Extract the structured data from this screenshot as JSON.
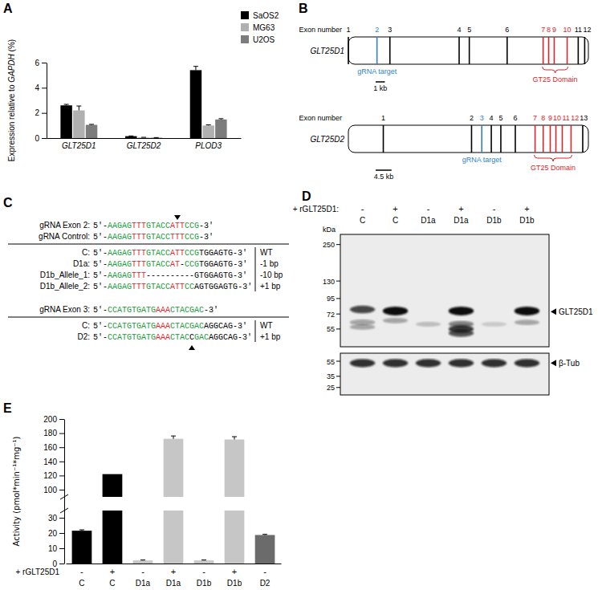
{
  "chart_data": [
    {
      "type": "bar",
      "annotations": [
        "A"
      ],
      "y_label": "Expression relative to GAPDH (%)",
      "categories": [
        "GLT25D1",
        "GLT25D2",
        "PLOD3"
      ],
      "series": [
        {
          "name": "SaOS2",
          "color": "#000000",
          "values": [
            2.6,
            0.15,
            5.4
          ],
          "errors": [
            0.08,
            0.02,
            0.3
          ]
        },
        {
          "name": "MG63",
          "color": "#b0b0b0",
          "values": [
            2.2,
            0.05,
            1.0
          ],
          "errors": [
            0.35,
            0.01,
            0.05
          ]
        },
        {
          "name": "U2OS",
          "color": "#7c7c7c",
          "values": [
            1.05,
            0.03,
            1.48
          ],
          "errors": [
            0.04,
            0.01,
            0.06
          ]
        }
      ],
      "ylim": [
        0,
        6
      ],
      "yticks": [
        0,
        2,
        4,
        6
      ],
      "legend": "upper right"
    },
    {
      "type": "bar",
      "annotations": [
        "E"
      ],
      "y_label": "Activity (pmol*min⁻¹*mg⁻¹)",
      "categories": [
        "C",
        "C",
        "D1a",
        "D1a",
        "D1b",
        "D1b",
        "D2"
      ],
      "treatment": {
        "label": "+ rGLT25D1",
        "values": [
          "-",
          "+",
          "-",
          "+",
          "-",
          "+",
          "-"
        ]
      },
      "values": [
        21.5,
        122,
        2,
        172,
        2,
        171,
        18.7
      ],
      "errors": [
        0.6,
        null,
        0.3,
        4,
        0.3,
        4,
        0.4
      ],
      "colors": [
        "#000000",
        "#000000",
        "#c6c6c6",
        "#c6c6c6",
        "#c6c6c6",
        "#c6c6c6",
        "#6b6b6b"
      ],
      "ylim": [
        0,
        200
      ],
      "y_break": [
        30,
        100
      ],
      "yticks": [
        0,
        10,
        20,
        30,
        100,
        120,
        140,
        160,
        180,
        200
      ]
    }
  ],
  "gene_diagram": {
    "panel": "B",
    "genes": [
      {
        "name": "GLT25D1",
        "exon_label": "Exon number",
        "length_kb": 26,
        "exons": [
          {
            "number": 1,
            "kb": 0
          },
          {
            "number": 2,
            "kb": 3.1
          },
          {
            "number": 3,
            "kb": 4.5
          },
          {
            "number": 4,
            "kb": 12.0
          },
          {
            "number": 5,
            "kb": 13.1
          },
          {
            "number": 6,
            "kb": 17.2
          },
          {
            "number": 7,
            "kb": 21.1
          },
          {
            "number": 8,
            "kb": 21.7
          },
          {
            "number": 9,
            "kb": 22.3
          },
          {
            "number": 10,
            "kb": 23.7
          },
          {
            "number": 11,
            "kb": 24.9
          },
          {
            "number": 12,
            "kb": 25.6
          }
        ],
        "target": {
          "label": "gRNA target",
          "exon": 2,
          "color": "#2f7fd0"
        },
        "domain": {
          "label": "GT25 Domain",
          "exons": [
            7,
            10
          ],
          "color": "#d7262b"
        },
        "scale_bar": {
          "kb": 1,
          "label": "1 kb"
        }
      },
      {
        "name": "GLT25D2",
        "exon_label": "Exon number",
        "length_kb": 68,
        "exons": [
          {
            "number": 1,
            "kb": 9.9
          },
          {
            "number": 2,
            "kb": 34.9
          },
          {
            "number": 3,
            "kb": 37.8
          },
          {
            "number": 4,
            "kb": 40.5
          },
          {
            "number": 5,
            "kb": 43.2
          },
          {
            "number": 6,
            "kb": 47.3
          },
          {
            "number": 7,
            "kb": 52.9
          },
          {
            "number": 8,
            "kb": 55.2
          },
          {
            "number": 9,
            "kb": 57.2
          },
          {
            "number": 10,
            "kb": 58.8
          },
          {
            "number": 11,
            "kb": 60.6
          },
          {
            "number": 12,
            "kb": 63.1
          },
          {
            "number": 13,
            "kb": 66.4
          }
        ],
        "target": {
          "label": "gRNA target",
          "exon": 3,
          "color": "#2f7fd0"
        },
        "domain": {
          "label": "GT25 Domain",
          "exons": [
            7,
            12
          ],
          "color": "#d7262b"
        },
        "scale_bar": {
          "kb": 4.5,
          "label": "4.5 kb"
        }
      }
    ]
  },
  "sequences": {
    "panel": "C",
    "groups": [
      {
        "guides": [
          {
            "label": "gRNA Exon 2:",
            "segments": [
              [
                "5'-",
                "#000000"
              ],
              [
                "AAGAG",
                "#1c9a3c"
              ],
              [
                "TTT",
                "#e0262b"
              ],
              [
                "GTACC",
                "#1c9a3c"
              ],
              [
                "ATT",
                "#e0262b"
              ],
              [
                "CCG",
                "#1c9a3c"
              ],
              [
                "-3'",
                "#000000"
              ]
            ]
          },
          {
            "label": "gRNA Control:",
            "segments": [
              [
                "5'-",
                "#000000"
              ],
              [
                "AAGAG",
                "#1c9a3c"
              ],
              [
                "TTT",
                "#e0262b"
              ],
              [
                "GTACC",
                "#1c9a3c"
              ],
              [
                "TTT",
                "#e0262b"
              ],
              [
                "CCG",
                "#1c9a3c"
              ],
              [
                "-3'",
                "#000000"
              ]
            ]
          }
        ],
        "results": [
          {
            "label": "C:",
            "change": "WT",
            "segments": [
              [
                "5'-",
                "#000000"
              ],
              [
                "AAGAG",
                "#1c9a3c"
              ],
              [
                "TTT",
                "#e0262b"
              ],
              [
                "GTACC",
                "#1c9a3c"
              ],
              [
                "ATT",
                "#e0262b"
              ],
              [
                "CCG",
                "#1c9a3c"
              ],
              [
                "TGGAGTG",
                "#000000"
              ],
              [
                "-3'",
                "#000000"
              ]
            ]
          },
          {
            "label": "D1a:",
            "change": "-1 bp",
            "segments": [
              [
                "5'-",
                "#000000"
              ],
              [
                "AAGAG",
                "#1c9a3c"
              ],
              [
                "TTT",
                "#e0262b"
              ],
              [
                "GTACC",
                "#1c9a3c"
              ],
              [
                "AT",
                "#e0262b"
              ],
              [
                "-",
                "#000000"
              ],
              [
                "CCG",
                "#1c9a3c"
              ],
              [
                "TGGAGTG",
                "#000000"
              ],
              [
                "-3'",
                "#000000"
              ]
            ]
          },
          {
            "label": "D1b_Allele_1:",
            "change": "-10 bp",
            "segments": [
              [
                "5'-",
                "#000000"
              ],
              [
                "AAGAG",
                "#1c9a3c"
              ],
              [
                "TTT",
                "#e0262b"
              ],
              [
                "----------",
                "#000000"
              ],
              [
                "GTGGAGTG",
                "#000000"
              ],
              [
                "-3'",
                "#000000"
              ]
            ]
          },
          {
            "label": "D1b_Allele_2:",
            "change": "+1 bp",
            "segments": [
              [
                "5'-",
                "#000000"
              ],
              [
                "AAGAG",
                "#1c9a3c"
              ],
              [
                "TTT",
                "#e0262b"
              ],
              [
                "GTACC",
                "#1c9a3c"
              ],
              [
                "ATT",
                "#e0262b"
              ],
              [
                "CC",
                "#1c9a3c"
              ],
              [
                "A",
                "#000000"
              ],
              [
                "GTGGAGTG",
                "#000000"
              ],
              [
                "-3'",
                "#000000"
              ]
            ]
          }
        ]
      },
      {
        "guides": [
          {
            "label": "gRNA Exon 3:",
            "segments": [
              [
                "5'-",
                "#000000"
              ],
              [
                "CCATGTGATG",
                "#1c9a3c"
              ],
              [
                "AAA",
                "#e0262b"
              ],
              [
                "CTACGAC",
                "#1c9a3c"
              ],
              [
                "-3'",
                "#000000"
              ]
            ]
          }
        ],
        "results": [
          {
            "label": "C:",
            "change": "WT",
            "segments": [
              [
                "5'-",
                "#000000"
              ],
              [
                "CCATGTGATG",
                "#1c9a3c"
              ],
              [
                "AAA",
                "#e0262b"
              ],
              [
                "CTACGAC",
                "#1c9a3c"
              ],
              [
                "AGGCAG",
                "#000000"
              ],
              [
                "-3'",
                "#000000"
              ]
            ]
          },
          {
            "label": "D2:",
            "change": "+1 bp",
            "segments": [
              [
                "5'-",
                "#000000"
              ],
              [
                "CCATGTGATG",
                "#1c9a3c"
              ],
              [
                "AAA",
                "#e0262b"
              ],
              [
                "CTAC",
                "#1c9a3c"
              ],
              [
                "C",
                "#000000"
              ],
              [
                "GAC",
                "#1c9a3c"
              ],
              [
                "AGGCAG",
                "#000000"
              ],
              [
                "-3'",
                "#000000"
              ]
            ]
          }
        ]
      }
    ]
  },
  "blot": {
    "panel": "D",
    "treatment_label": "+ rGLT25D1:",
    "treatment": [
      "-",
      "+",
      "-",
      "+",
      "-",
      "+"
    ],
    "lanes": [
      "C",
      "C",
      "D1a",
      "D1a",
      "D1b",
      "D1b"
    ],
    "unit": "kDa",
    "blots": [
      {
        "ladder": [
          250,
          130,
          95,
          72,
          55
        ],
        "ylim": [
          300,
          40
        ],
        "target": {
          "label": "GLT25D1",
          "kda": 75
        },
        "bands": [
          {
            "lane": 0,
            "kda": 78,
            "intensity": 0.75
          },
          {
            "lane": 0,
            "kda": 62,
            "intensity": 0.35
          },
          {
            "lane": 0,
            "kda": 57,
            "intensity": 0.3
          },
          {
            "lane": 1,
            "kda": 76,
            "intensity": 1.0
          },
          {
            "lane": 1,
            "kda": 64,
            "intensity": 0.3
          },
          {
            "lane": 2,
            "kda": 60,
            "intensity": 0.2
          },
          {
            "lane": 3,
            "kda": 76,
            "intensity": 1.0
          },
          {
            "lane": 3,
            "kda": 60,
            "intensity": 0.5
          },
          {
            "lane": 3,
            "kda": 55,
            "intensity": 0.8
          },
          {
            "lane": 3,
            "kda": 51,
            "intensity": 0.7
          },
          {
            "lane": 4,
            "kda": 60,
            "intensity": 0.15
          },
          {
            "lane": 5,
            "kda": 76,
            "intensity": 1.0
          },
          {
            "lane": 5,
            "kda": 62,
            "intensity": 0.3
          }
        ]
      },
      {
        "ladder": [
          55,
          35,
          25
        ],
        "ylim": [
          70,
          20
        ],
        "target": {
          "label": "β-Tub",
          "kda": 52
        },
        "bands": [
          {
            "lane": 0,
            "kda": 52,
            "intensity": 0.85
          },
          {
            "lane": 1,
            "kda": 52,
            "intensity": 0.85
          },
          {
            "lane": 2,
            "kda": 52,
            "intensity": 0.85
          },
          {
            "lane": 3,
            "kda": 52,
            "intensity": 0.85
          },
          {
            "lane": 4,
            "kda": 52,
            "intensity": 0.85
          },
          {
            "lane": 5,
            "kda": 52,
            "intensity": 0.85
          }
        ]
      }
    ]
  }
}
